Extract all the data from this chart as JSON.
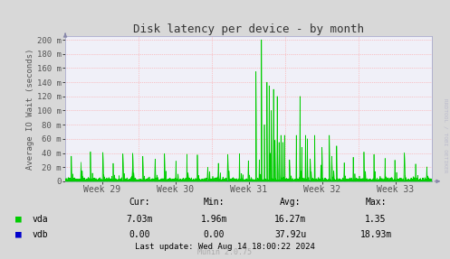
{
  "title": "Disk latency per device - by month",
  "ylabel": "Average IO Wait (seconds)",
  "xlabel_ticks": [
    "Week 29",
    "Week 30",
    "Week 31",
    "Week 32",
    "Week 33"
  ],
  "ytick_labels": [
    "0",
    "20 m",
    "40 m",
    "60 m",
    "80 m",
    "100 m",
    "120 m",
    "140 m",
    "160 m",
    "180 m",
    "200 m"
  ],
  "ytick_values": [
    0,
    0.02,
    0.04,
    0.06,
    0.08,
    0.1,
    0.12,
    0.14,
    0.16,
    0.18,
    0.2
  ],
  "ymax": 0.205,
  "bg_color": "#d8d8d8",
  "plot_bg_color": "#f0f0f8",
  "grid_color": "#ff9999",
  "line_color_vda": "#00cc00",
  "line_color_vdb": "#0000cc",
  "title_color": "#333333",
  "label_color": "#555555",
  "watermark": "RRDTOOL / TOBI OETIKER",
  "footer_left": "Munin 2.0.75",
  "stats_header": [
    "Cur:",
    "Min:",
    "Avg:",
    "Max:"
  ],
  "stats_vda": [
    "7.03m",
    "1.96m",
    "16.27m",
    "1.35"
  ],
  "stats_vdb": [
    "0.00",
    "0.00",
    "37.92u",
    "18.93m"
  ],
  "last_update": "Last update: Wed Aug 14 18:00:22 2024",
  "legend_vda": "vda",
  "legend_vdb": "vdb"
}
